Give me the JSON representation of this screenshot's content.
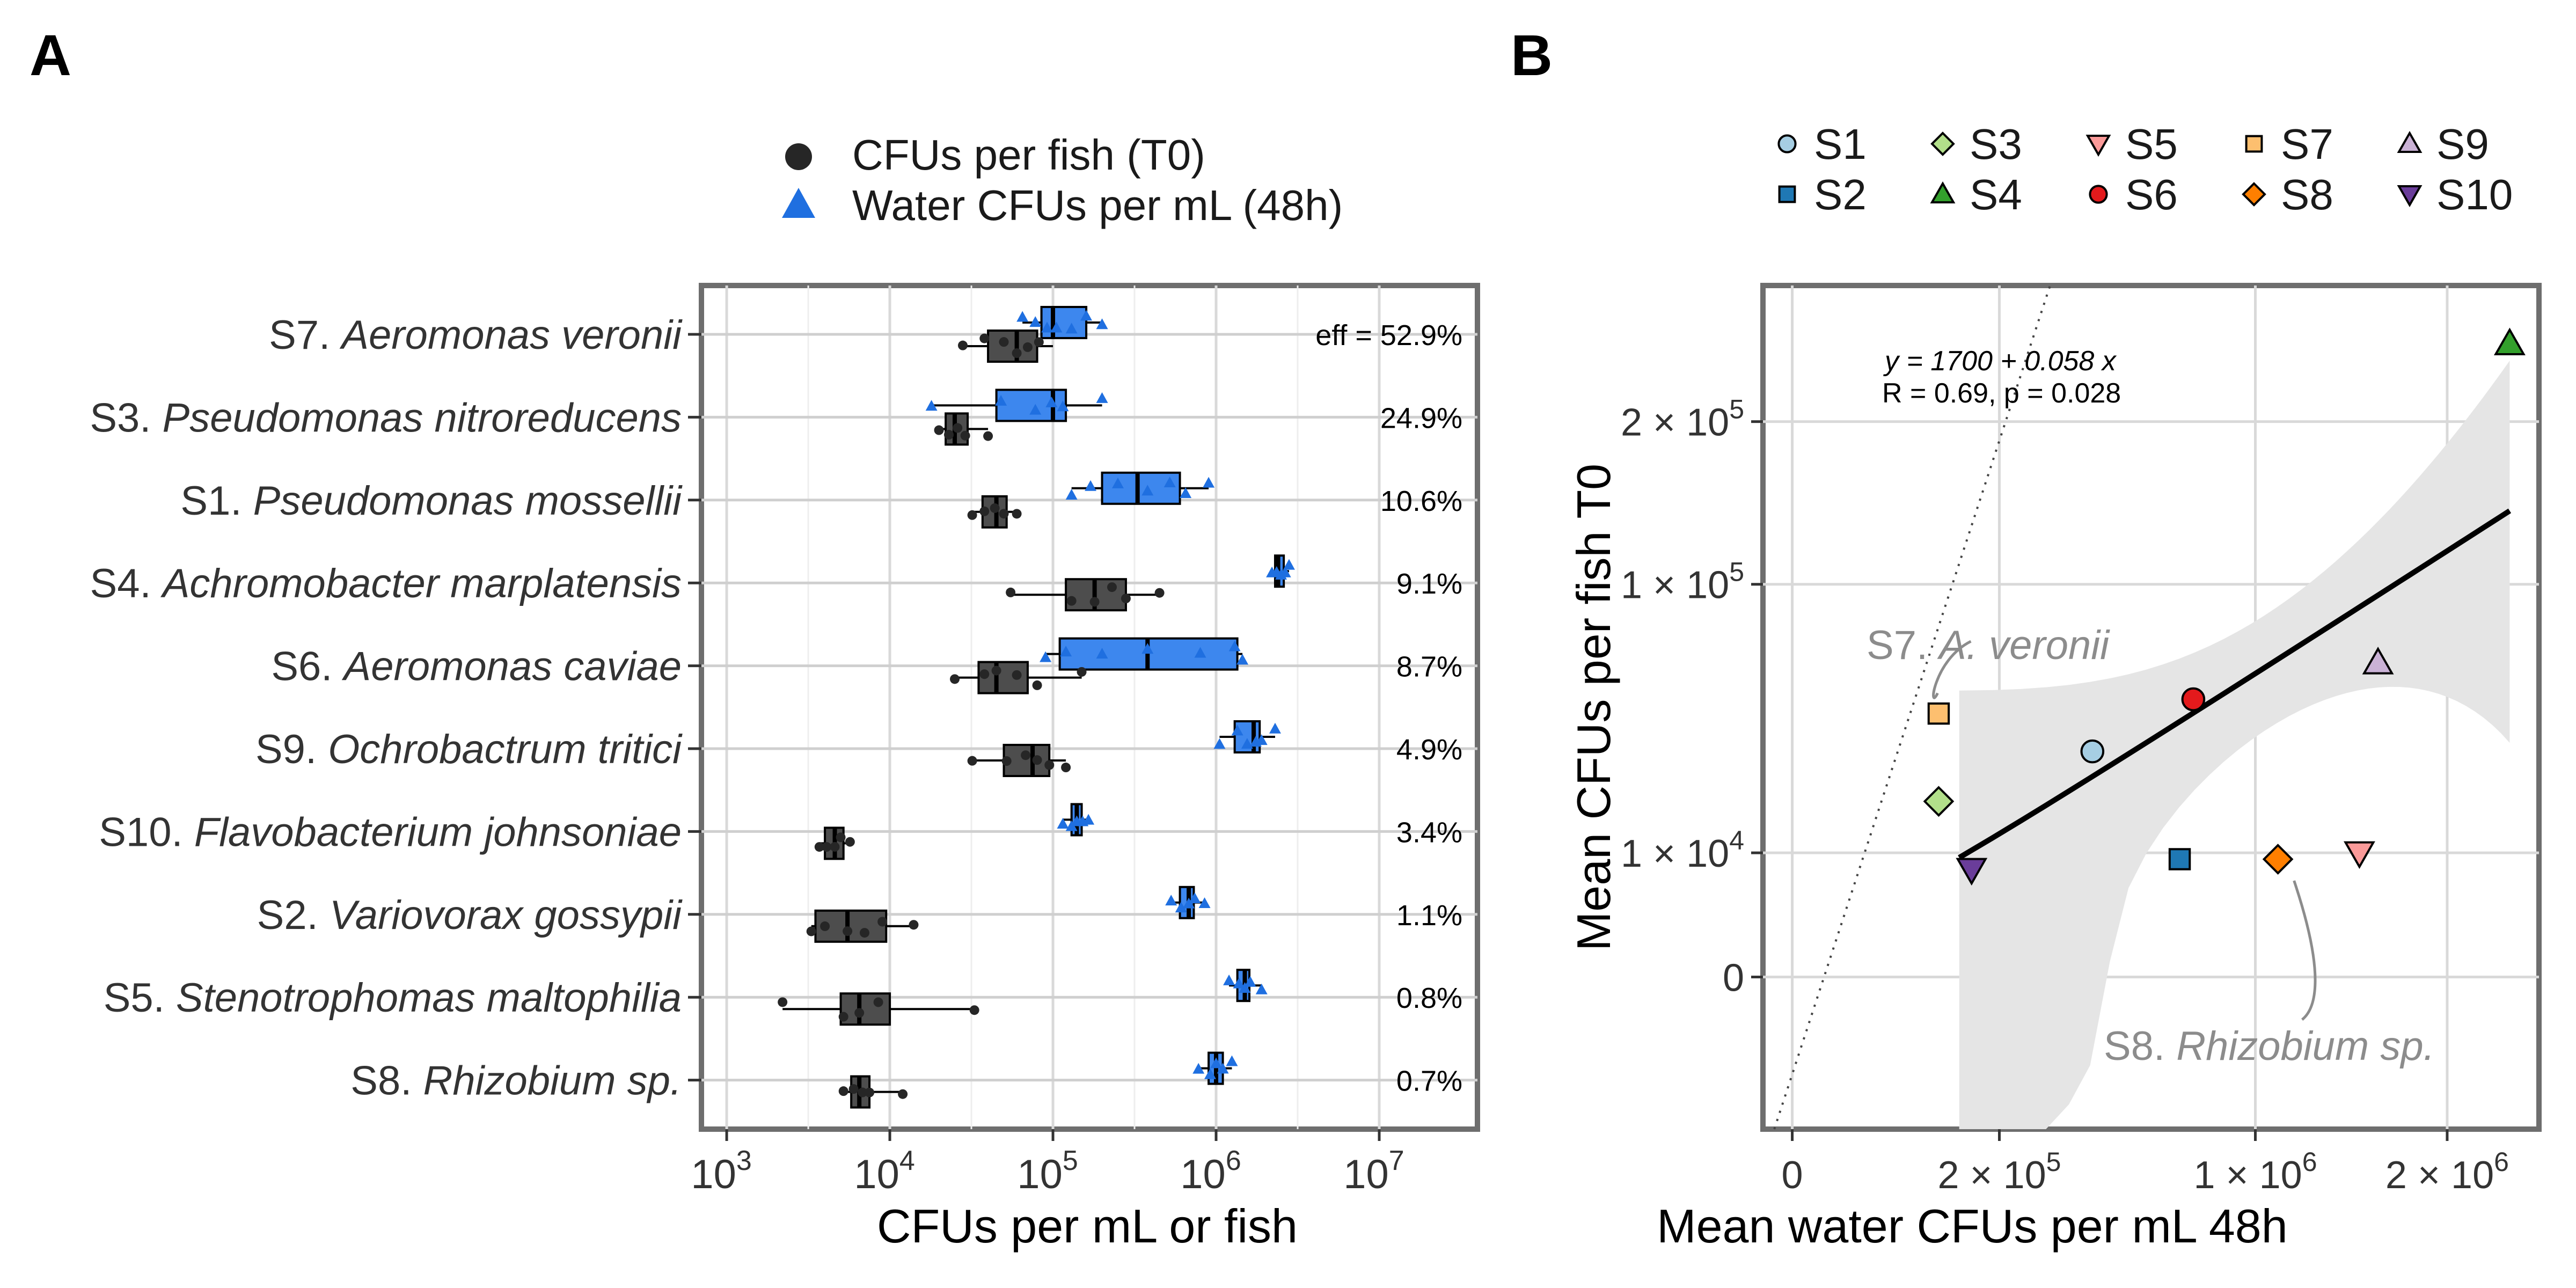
{
  "panel_a": {
    "label": "A",
    "legend": [
      "CFUs per fish (T0)",
      "Water CFUs per mL (48h)"
    ],
    "xlabel": "CFUs per mL or fish",
    "x_tick_labels": [
      "10",
      "10",
      "10",
      "10",
      "10"
    ],
    "x_tick_exponents": [
      "3",
      "4",
      "5",
      "6",
      "7"
    ],
    "eff_prefix": "eff = "
  },
  "panel_b": {
    "label": "B",
    "xlabel": "Mean water CFUs per mL 48h",
    "ylabel": "Mean CFUs per fish T0",
    "x_tick_labels": [
      "0",
      "2 × 10",
      "1 × 10",
      "2 × 10"
    ],
    "x_tick_exponents": [
      "",
      "5",
      "6",
      "6"
    ],
    "y_tick_labels": [
      "0",
      "1 × 10",
      "1 × 10",
      "2 × 10"
    ],
    "y_tick_exponents": [
      "",
      "4",
      "5",
      "5"
    ],
    "equation": "y = 1700 + 0.058 x",
    "stats_text": "R = 0.69, p = 0.028",
    "annotations": [
      {
        "prefix": "S7. ",
        "name": "A. veronii"
      },
      {
        "prefix": "S8. ",
        "name": "Rhizobium sp."
      }
    ],
    "legend": [
      "S1",
      "S2",
      "S3",
      "S4",
      "S5",
      "S6",
      "S7",
      "S8",
      "S9",
      "S10"
    ]
  },
  "chart_data": [
    {
      "type": "box",
      "title": "",
      "xlabel": "CFUs per mL or fish",
      "x_scale": "log10",
      "xlim": [
        700,
        40000000
      ],
      "series": [
        {
          "name": "CFUs per fish (T0)",
          "color": "#4d4d4d",
          "marker": "circle"
        },
        {
          "name": "Water CFUs per mL (48h)",
          "color": "#3d87ee",
          "marker": "triangle"
        }
      ],
      "categories": [
        {
          "id": "S7.",
          "name": "Aeromonas veronii",
          "eff": "52.9%",
          "fish": {
            "q1": 40000,
            "median": 60000,
            "q3": 80000,
            "min": 27000,
            "max": 100000,
            "points": [
              28000,
              38000,
              50000,
              60000,
              70000,
              82000
            ]
          },
          "water": {
            "q1": 85000,
            "median": 100000,
            "q3": 160000,
            "min": 65000,
            "max": 200000,
            "points": [
              65000,
              78000,
              92000,
              105000,
              130000,
              160000,
              200000
            ]
          }
        },
        {
          "id": "S3.",
          "name": "Pseudomonas nitroreducens",
          "eff": "24.9%",
          "fish": {
            "q1": 22000,
            "median": 25000,
            "q3": 30000,
            "min": 20000,
            "max": 40000,
            "points": [
              20000,
              23000,
              26000,
              29000,
              40000
            ]
          },
          "water": {
            "q1": 45000,
            "median": 100000,
            "q3": 120000,
            "min": 18000,
            "max": 200000,
            "points": [
              18000,
              48000,
              78000,
              98000,
              115000,
              200000
            ]
          }
        },
        {
          "id": "S1.",
          "name": "Pseudomonas mossellii",
          "eff": "10.6%",
          "fish": {
            "q1": 37000,
            "median": 45000,
            "q3": 52000,
            "min": 32000,
            "max": 60000,
            "points": [
              32000,
              38000,
              44000,
              50000,
              60000
            ]
          },
          "water": {
            "q1": 200000,
            "median": 330000,
            "q3": 600000,
            "min": 130000,
            "max": 900000,
            "points": [
              130000,
              170000,
              250000,
              380000,
              520000,
              650000,
              900000
            ]
          }
        },
        {
          "id": "S4.",
          "name": "Achromobacter marplatensis",
          "eff": "9.1%",
          "fish": {
            "q1": 120000,
            "median": 180000,
            "q3": 280000,
            "min": 55000,
            "max": 450000,
            "points": [
              55000,
              130000,
              180000,
              230000,
              280000,
              450000
            ]
          },
          "water": {
            "q1": 2300000,
            "median": 2400000,
            "q3": 2600000,
            "min": 2200000,
            "max": 2800000,
            "points": [
              2200000,
              2350000,
              2500000,
              2650000,
              2800000
            ]
          }
        },
        {
          "id": "S6.",
          "name": "Aeromonas caviae",
          "eff": "8.7%",
          "fish": {
            "q1": 35000,
            "median": 45000,
            "q3": 70000,
            "min": 25000,
            "max": 150000,
            "points": [
              25000,
              38000,
              45000,
              60000,
              80000,
              150000
            ]
          },
          "water": {
            "q1": 110000,
            "median": 380000,
            "q3": 1350000,
            "min": 90000,
            "max": 1450000,
            "points": [
              90000,
              120000,
              200000,
              380000,
              800000,
              1300000,
              1450000
            ]
          }
        },
        {
          "id": "S9.",
          "name": "Ochrobactrum tritici",
          "eff": "4.9%",
          "fish": {
            "q1": 50000,
            "median": 75000,
            "q3": 95000,
            "min": 32000,
            "max": 120000,
            "points": [
              32000,
              52000,
              68000,
              80000,
              95000,
              120000
            ]
          },
          "water": {
            "q1": 1300000,
            "median": 1700000,
            "q3": 1850000,
            "min": 1050000,
            "max": 2300000,
            "points": [
              1050000,
              1350000,
              1550000,
              1750000,
              1900000,
              2300000
            ]
          }
        },
        {
          "id": "S10.",
          "name": "Flavobacterium johnsoniae",
          "eff": "3.4%",
          "fish": {
            "q1": 4000,
            "median": 4600,
            "q3": 5200,
            "min": 3700,
            "max": 5700,
            "points": [
              3700,
              4100,
              4600,
              5000,
              5700
            ]
          },
          "water": {
            "q1": 130000,
            "median": 140000,
            "q3": 150000,
            "min": 115000,
            "max": 165000,
            "points": [
              115000,
              130000,
              140000,
              152000,
              165000
            ]
          }
        },
        {
          "id": "S2.",
          "name": "Variovorax gossypii",
          "eff": "1.1%",
          "fish": {
            "q1": 3500,
            "median": 5500,
            "q3": 9500,
            "min": 3300,
            "max": 14000,
            "points": [
              3300,
              4000,
              5500,
              7000,
              9000,
              14000
            ]
          },
          "water": {
            "q1": 600000,
            "median": 680000,
            "q3": 730000,
            "min": 530000,
            "max": 850000,
            "points": [
              530000,
              610000,
              680000,
              740000,
              850000
            ]
          }
        },
        {
          "id": "S5.",
          "name": "Stenotrophomas maltophilia",
          "eff": "0.8%",
          "fish": {
            "q1": 5000,
            "median": 6500,
            "q3": 10000,
            "min": 2200,
            "max": 33000,
            "points": [
              2200,
              5200,
              6500,
              8500,
              33000
            ]
          },
          "water": {
            "q1": 1350000,
            "median": 1500000,
            "q3": 1600000,
            "min": 1200000,
            "max": 1900000,
            "points": [
              1200000,
              1380000,
              1500000,
              1620000,
              1900000
            ]
          }
        },
        {
          "id": "S8.",
          "name": "Rhizobium sp.",
          "eff": "0.7%",
          "fish": {
            "q1": 5800,
            "median": 6500,
            "q3": 7500,
            "min": 5200,
            "max": 12000,
            "points": [
              5200,
              6000,
              6800,
              7500,
              12000
            ]
          },
          "water": {
            "q1": 900000,
            "median": 1000000,
            "q3": 1100000,
            "min": 780000,
            "max": 1250000,
            "points": [
              780000,
              920000,
              1000000,
              1100000,
              1250000
            ]
          }
        }
      ]
    },
    {
      "type": "scatter",
      "title": "",
      "xlabel": "Mean water CFUs per mL 48h",
      "ylabel": "Mean CFUs per fish T0",
      "x_scale": "sqrt",
      "y_scale": "sqrt",
      "x_ticks": [
        0,
        200000,
        1000000,
        2000000
      ],
      "y_ticks": [
        0,
        10000,
        100000,
        200000
      ],
      "xlim": [
        -4000,
        2600000
      ],
      "ylim": [
        -15000,
        310000
      ],
      "grid": true,
      "legend_position": "top",
      "fit": {
        "intercept": 1700,
        "slope": 0.058,
        "R": 0.69,
        "p": 0.028,
        "x_range": [
          130000,
          2400000
        ]
      },
      "points": [
        {
          "label": "S1",
          "x": 420000,
          "y": 33000,
          "marker": "circle",
          "color": "#a6cee3"
        },
        {
          "label": "S2",
          "x": 700000,
          "y": 9000,
          "marker": "square",
          "color": "#1f78b4"
        },
        {
          "label": "S3",
          "x": 100000,
          "y": 20000,
          "marker": "diamond",
          "color": "#b2df8a"
        },
        {
          "label": "S4",
          "x": 2400000,
          "y": 260000,
          "marker": "triangle-up",
          "color": "#33a02c"
        },
        {
          "label": "S5",
          "x": 1500000,
          "y": 10000,
          "marker": "triangle-down",
          "color": "#fb9a99"
        },
        {
          "label": "S6",
          "x": 750000,
          "y": 50000,
          "marker": "circle",
          "color": "#e31a1c"
        },
        {
          "label": "S7",
          "x": 100000,
          "y": 45000,
          "marker": "square",
          "color": "#fdbf6f"
        },
        {
          "label": "S8",
          "x": 1100000,
          "y": 9000,
          "marker": "diamond",
          "color": "#ff7f00"
        },
        {
          "label": "S9",
          "x": 1600000,
          "y": 64000,
          "marker": "triangle-up",
          "color": "#cab2d6"
        },
        {
          "label": "S10",
          "x": 150000,
          "y": 7500,
          "marker": "triangle-down",
          "color": "#6a3d9a"
        }
      ]
    }
  ]
}
